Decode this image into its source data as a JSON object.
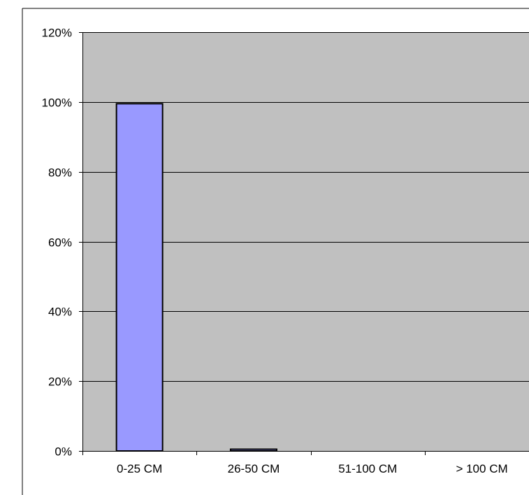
{
  "chart_data": {
    "type": "bar",
    "categories": [
      "0-25 CM",
      "26-50 CM",
      "51-100 CM",
      "> 100 CM"
    ],
    "values": [
      99.5,
      0.5,
      0,
      0
    ],
    "ylim": [
      0,
      120
    ],
    "yticks": [
      0,
      20,
      40,
      60,
      80,
      100,
      120
    ],
    "ytick_labels": [
      "0%",
      "20%",
      "40%",
      "60%",
      "80%",
      "100%",
      "120%"
    ],
    "grid": true,
    "title": "",
    "xlabel": "",
    "ylabel": "",
    "colors": {
      "bar_fill": "#9999ff",
      "bar_stroke": "#000000",
      "plot_background": "#c0c0c0",
      "gridline": "#000000"
    }
  }
}
